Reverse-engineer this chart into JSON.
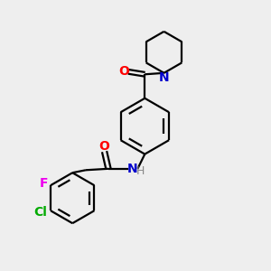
{
  "background_color": "#eeeeee",
  "bond_color": "#000000",
  "atom_colors": {
    "O": "#ff0000",
    "N": "#0000cc",
    "F": "#ee00ee",
    "Cl": "#00aa00",
    "H": "#888888",
    "C": "#000000"
  },
  "figsize": [
    3.0,
    3.0
  ],
  "dpi": 100,
  "xlim": [
    0,
    10
  ],
  "ylim": [
    0,
    10
  ]
}
